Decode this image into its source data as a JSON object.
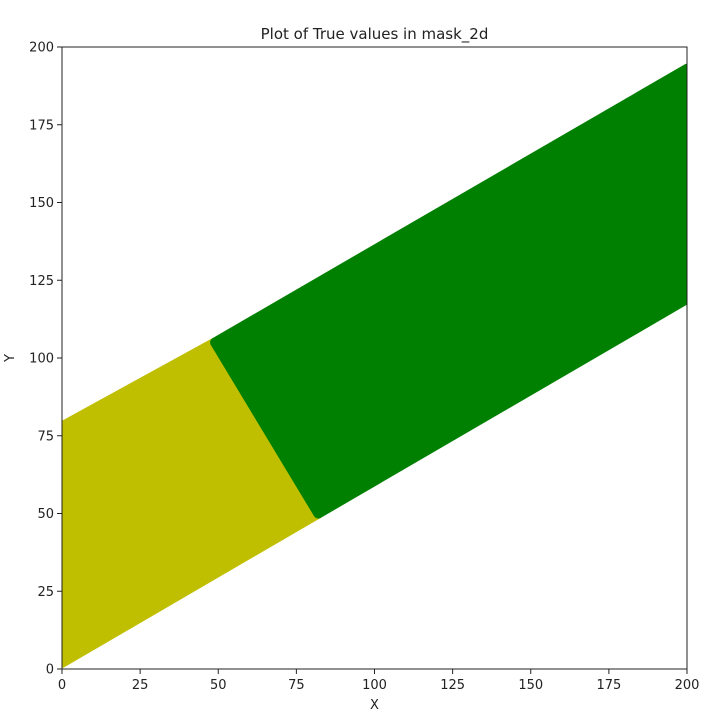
{
  "chart_data": {
    "type": "scatter",
    "title": "Plot of True values in mask_2d",
    "xlabel": "X",
    "ylabel": "Y",
    "xlim": [
      0,
      200
    ],
    "ylim": [
      0,
      200
    ],
    "xticks": [
      "0",
      "25",
      "50",
      "75",
      "100",
      "125",
      "150",
      "175",
      "200"
    ],
    "yticks": [
      "0",
      "25",
      "50",
      "75",
      "100",
      "125",
      "150",
      "175",
      "200"
    ],
    "grid": false,
    "series": [
      {
        "color": "#bfbf00",
        "region": [
          [
            0,
            2
          ],
          [
            0,
            78
          ],
          [
            49,
            105
          ],
          [
            82,
            50
          ]
        ]
      },
      {
        "color": "#008000",
        "region": [
          [
            49,
            105
          ],
          [
            82,
            50
          ],
          [
            200,
            119
          ],
          [
            200,
            193
          ]
        ]
      }
    ]
  }
}
